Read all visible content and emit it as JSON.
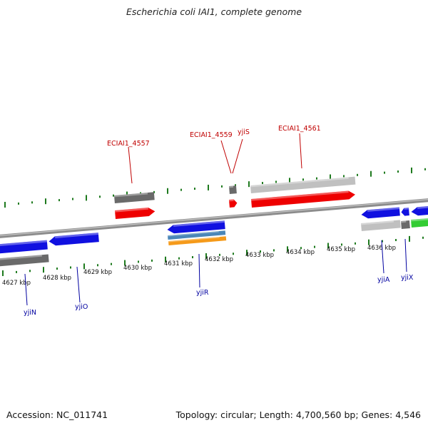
{
  "title": "Escherichia coli IAI1, complete genome",
  "footer": {
    "accession": "Accession: NC_011741",
    "topology": "Topology: circular; Length: 4,700,560 bp; Genes: 4,546"
  },
  "colors": {
    "backbone": "#8a8a8a",
    "tick": "#1e7a1e",
    "gene_label_forward": "#c00000",
    "gene_label_reverse": "#0000a0",
    "cds_blue": "#1010e0",
    "cds_red": "#ee0000",
    "gene_gray": "#6a6a6a",
    "gene_lightgray": "#c0c0c0",
    "orange": "#f59a1a",
    "steelblue": "#4a86b8",
    "green": "#33cc33"
  },
  "scale_labels": [
    "4627 kbp",
    "4628 kbp",
    "4629 kbp",
    "4630 kbp",
    "4631 kbp",
    "4632 kbp",
    "4633 kbp",
    "4634 kbp",
    "4635 kbp",
    "4636 kbp"
  ],
  "gene_labels_forward": [
    "ECIAI1_4557",
    "ECIAI1_4559",
    "yjiS",
    "ECIAI1_4561"
  ],
  "gene_labels_reverse": [
    "yjiN",
    "yjiO",
    "yjiR",
    "yjiA",
    "yjiX"
  ]
}
